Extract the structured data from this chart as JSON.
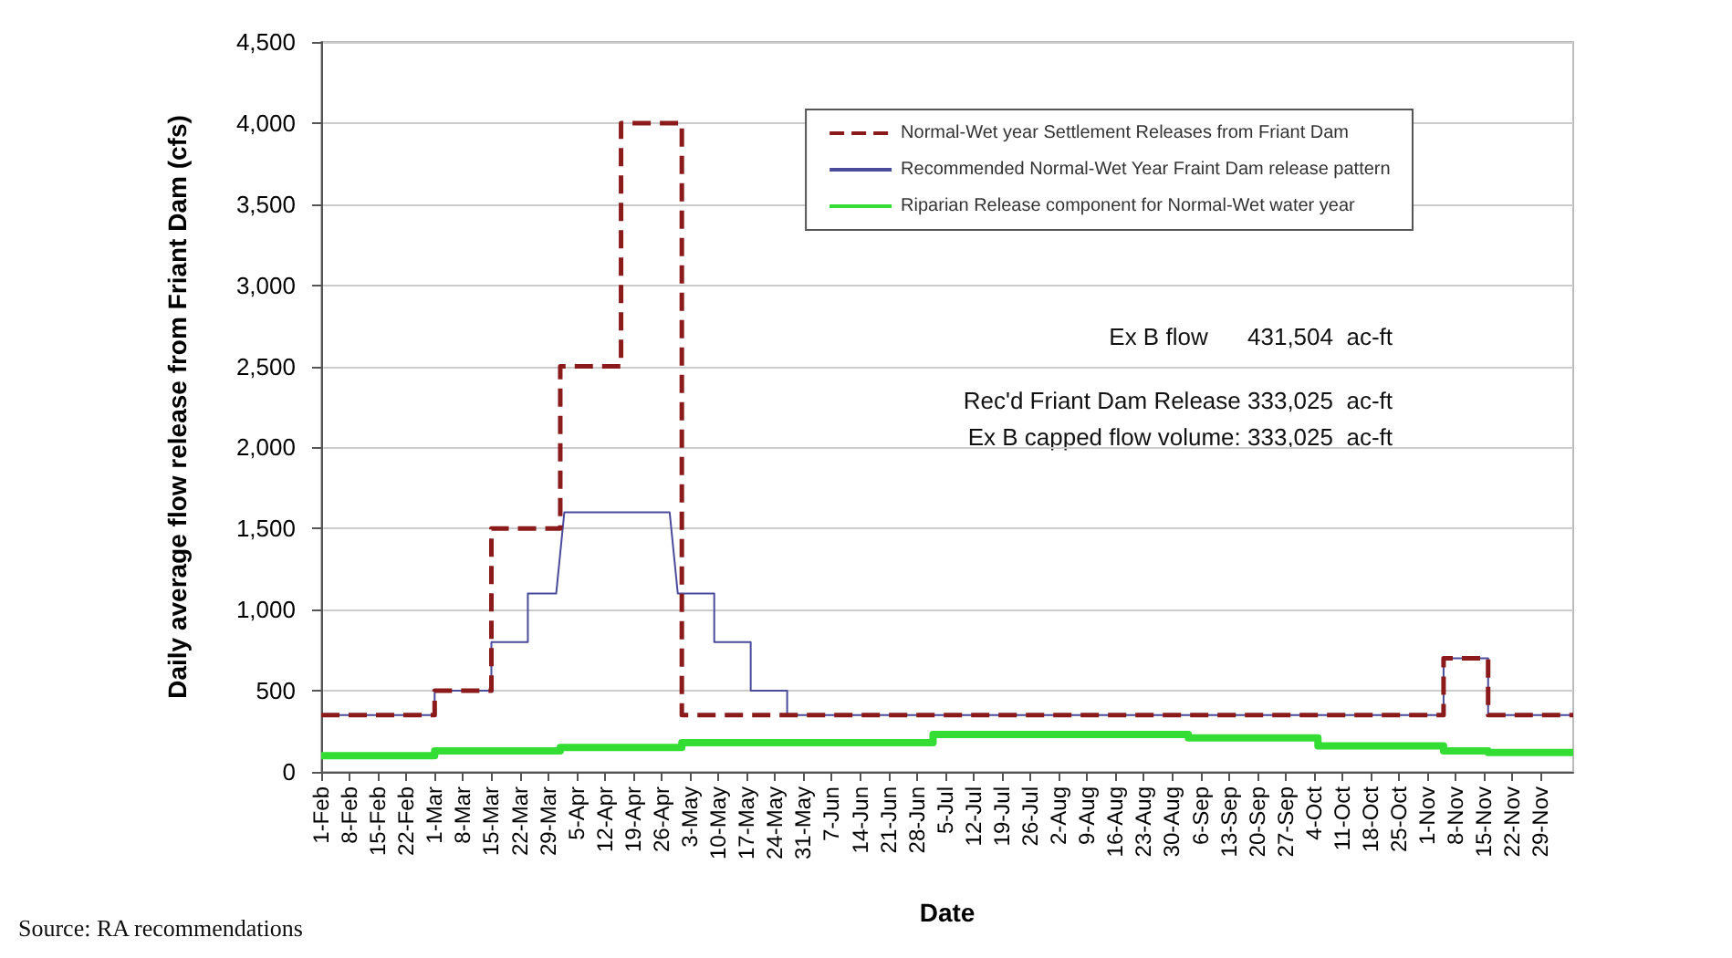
{
  "chart_data": {
    "type": "line",
    "xlabel": "Date",
    "ylabel": "Daily average flow release from Friant Dam (cfs)",
    "xlim": [
      "--02-01",
      "--12-07"
    ],
    "xticks": [
      {
        "value": "--02-01",
        "label": "1-Feb"
      },
      {
        "value": "--02-08",
        "label": "8-Feb"
      },
      {
        "value": "--02-15",
        "label": "15-Feb"
      },
      {
        "value": "--02-22",
        "label": "22-Feb"
      },
      {
        "value": "--03-01",
        "label": "1-Mar"
      },
      {
        "value": "--03-08",
        "label": "8-Mar"
      },
      {
        "value": "--03-15",
        "label": "15-Mar"
      },
      {
        "value": "--03-22",
        "label": "22-Mar"
      },
      {
        "value": "--03-29",
        "label": "29-Mar"
      },
      {
        "value": "--04-05",
        "label": "5-Apr"
      },
      {
        "value": "--04-12",
        "label": "12-Apr"
      },
      {
        "value": "--04-19",
        "label": "19-Apr"
      },
      {
        "value": "--04-26",
        "label": "26-Apr"
      },
      {
        "value": "--05-03",
        "label": "3-May"
      },
      {
        "value": "--05-10",
        "label": "10-May"
      },
      {
        "value": "--05-17",
        "label": "17-May"
      },
      {
        "value": "--05-24",
        "label": "24-May"
      },
      {
        "value": "--05-31",
        "label": "31-May"
      },
      {
        "value": "--06-07",
        "label": "7-Jun"
      },
      {
        "value": "--06-14",
        "label": "14-Jun"
      },
      {
        "value": "--06-21",
        "label": "21-Jun"
      },
      {
        "value": "--06-28",
        "label": "28-Jun"
      },
      {
        "value": "--07-05",
        "label": "5-Jul"
      },
      {
        "value": "--07-12",
        "label": "12-Jul"
      },
      {
        "value": "--07-19",
        "label": "19-Jul"
      },
      {
        "value": "--07-26",
        "label": "26-Jul"
      },
      {
        "value": "--08-02",
        "label": "2-Aug"
      },
      {
        "value": "--08-09",
        "label": "9-Aug"
      },
      {
        "value": "--08-16",
        "label": "16-Aug"
      },
      {
        "value": "--08-23",
        "label": "23-Aug"
      },
      {
        "value": "--08-30",
        "label": "30-Aug"
      },
      {
        "value": "--09-06",
        "label": "6-Sep"
      },
      {
        "value": "--09-13",
        "label": "13-Sep"
      },
      {
        "value": "--09-20",
        "label": "20-Sep"
      },
      {
        "value": "--09-27",
        "label": "27-Sep"
      },
      {
        "value": "--10-04",
        "label": "4-Oct"
      },
      {
        "value": "--10-11",
        "label": "11-Oct"
      },
      {
        "value": "--10-18",
        "label": "18-Oct"
      },
      {
        "value": "--10-25",
        "label": "25-Oct"
      },
      {
        "value": "--11-01",
        "label": "1-Nov"
      },
      {
        "value": "--11-08",
        "label": "8-Nov"
      },
      {
        "value": "--11-15",
        "label": "15-Nov"
      },
      {
        "value": "--11-22",
        "label": "22-Nov"
      },
      {
        "value": "--11-29",
        "label": "29-Nov"
      }
    ],
    "ylim": [
      0,
      4500
    ],
    "yticks": [
      0,
      500,
      {
        "value": 1000,
        "label": "1,000"
      },
      {
        "value": 1500,
        "label": "1,500"
      },
      {
        "value": 2000,
        "label": "2,000"
      },
      {
        "value": 2500,
        "label": "2,500"
      },
      {
        "value": 3000,
        "label": "3,000"
      },
      {
        "value": 3500,
        "label": "3,500"
      },
      {
        "value": 4000,
        "label": "4,000"
      },
      {
        "value": 4500,
        "label": "4,500"
      }
    ],
    "grid": "y",
    "legend": "top right",
    "marker": "none",
    "series": [
      {
        "name": "Normal-Wet year Settlement Releases from Friant Dam",
        "color": "#8b1a1a",
        "line_style": "dashed",
        "x": [
          "--02-01",
          "--03-01",
          "--03-01",
          "--03-15",
          "--03-15",
          "--04-01",
          "--04-01",
          "--04-16",
          "--04-16",
          "--05-01",
          "--05-01",
          "--11-05",
          "--11-05",
          "--11-16",
          "--11-16",
          "--12-07"
        ],
        "values": [
          350,
          350,
          500,
          500,
          1500,
          1500,
          2500,
          2500,
          4000,
          4000,
          350,
          350,
          700,
          700,
          350,
          350
        ]
      },
      {
        "name": "Recommended Normal-Wet Year Fraint Dam release pattern",
        "color": "#4b4b9b",
        "line_style": "solid",
        "x": [
          "--02-01",
          "--03-01",
          "--03-01",
          "--03-15",
          "--03-15",
          "--03-24",
          "--03-24",
          "--03-31",
          "--04-02",
          "--04-28",
          "--04-30",
          "--05-09",
          "--05-09",
          "--05-18",
          "--05-18",
          "--05-27",
          "--05-27",
          "--11-05",
          "--11-05",
          "--11-16",
          "--11-16",
          "--12-07"
        ],
        "values": [
          350,
          350,
          500,
          500,
          800,
          800,
          1100,
          1100,
          1600,
          1600,
          1100,
          1100,
          800,
          800,
          500,
          500,
          350,
          350,
          700,
          700,
          350,
          350
        ]
      },
      {
        "name": "Riparian Release component for Normal-Wet water year",
        "color": "#33dd33",
        "line_style": "solid",
        "x": [
          "--02-01",
          "--03-01",
          "--03-01",
          "--04-01",
          "--04-01",
          "--05-01",
          "--05-01",
          "--07-02",
          "--07-02",
          "--09-03",
          "--09-03",
          "--10-05",
          "--10-05",
          "--11-05",
          "--11-05",
          "--11-16",
          "--11-16",
          "--12-07"
        ],
        "values": [
          100,
          100,
          130,
          130,
          150,
          150,
          180,
          180,
          230,
          230,
          210,
          210,
          160,
          160,
          130,
          130,
          120,
          120
        ]
      }
    ],
    "annotations": [
      "Ex B flow      431,504  ac-ft",
      "Rec'd Friant Dam Release 333,025  ac-ft",
      "Ex B capped flow volume: 333,025  ac-ft",
      "Source: RA recommendations"
    ]
  }
}
